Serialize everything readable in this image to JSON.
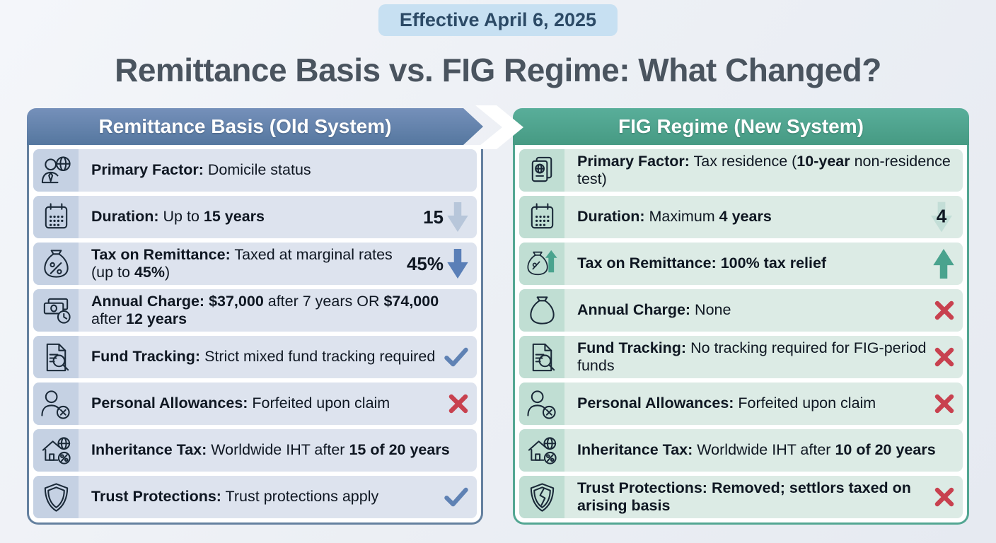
{
  "badge": {
    "label": "Effective April 6, 2025"
  },
  "title": "Remittance Basis vs. FIG Regime: What Changed?",
  "colors": {
    "old_system_header": "#5b7dac",
    "new_system_header": "#4ea18c",
    "check_blue": "#5f82b4",
    "cross_red": "#c8414f",
    "down_arrow_blue": "#5a7fb7",
    "down_arrow_light": "#b7c6da",
    "up_arrow_teal": "#4aa38e",
    "badge_bg": "#c7e0f2"
  },
  "left_panel": {
    "header": "Remittance Basis (Old System)",
    "rows": [
      {
        "icon": "person-globe",
        "segments": [
          {
            "t": "Primary Factor:",
            "b": true
          },
          {
            "t": " Domicile status"
          }
        ]
      },
      {
        "icon": "calendar",
        "marker_text": "15",
        "segments": [
          {
            "t": "Duration:",
            "b": true
          },
          {
            "t": " Up to "
          },
          {
            "t": "15 years",
            "b": true
          }
        ]
      },
      {
        "icon": "money-bag-percent",
        "marker_text": "45%",
        "segments": [
          {
            "t": "Tax on Remittance:",
            "b": true
          },
          {
            "t": " Taxed at marginal rates (up to "
          },
          {
            "t": "45%",
            "b": true
          },
          {
            "t": ")"
          }
        ]
      },
      {
        "icon": "banknotes-clock",
        "segments": [
          {
            "t": "Annual Charge:",
            "b": true
          },
          {
            "t": " "
          },
          {
            "t": "$37,000",
            "b": true
          },
          {
            "t": " after 7 years OR "
          },
          {
            "t": "$74,000",
            "b": true
          },
          {
            "t": " after "
          },
          {
            "t": "12 years",
            "b": true
          }
        ]
      },
      {
        "icon": "document-magnifier",
        "segments": [
          {
            "t": "Fund Tracking:",
            "b": true
          },
          {
            "t": " Strict mixed fund tracking required"
          }
        ]
      },
      {
        "icon": "person-crossed",
        "segments": [
          {
            "t": "Personal Allowances:",
            "b": true
          },
          {
            "t": " Forfeited upon claim"
          }
        ]
      },
      {
        "icon": "house-globe-percent",
        "segments": [
          {
            "t": "Inheritance Tax:",
            "b": true
          },
          {
            "t": " Worldwide IHT after "
          },
          {
            "t": "15 of 20 years",
            "b": true
          }
        ]
      },
      {
        "icon": "shield",
        "segments": [
          {
            "t": "Trust Protections:",
            "b": true
          },
          {
            "t": " Trust protections apply"
          }
        ]
      }
    ]
  },
  "right_panel": {
    "header": "FIG Regime (New System)",
    "rows": [
      {
        "icon": "passport",
        "segments": [
          {
            "t": "Primary Factor:",
            "b": true
          },
          {
            "t": " Tax residence ("
          },
          {
            "t": "10-year",
            "b": true
          },
          {
            "t": " non-residence test)"
          }
        ]
      },
      {
        "icon": "calendar",
        "marker_text": "4",
        "segments": [
          {
            "t": "Duration:",
            "b": true
          },
          {
            "t": " Maximum "
          },
          {
            "t": "4 years",
            "b": true
          }
        ]
      },
      {
        "icon": "money-bag-up",
        "segments": [
          {
            "t": "Tax on Remittance: 100% tax relief",
            "b": true
          }
        ]
      },
      {
        "icon": "money-bag",
        "segments": [
          {
            "t": "Annual Charge:",
            "b": true
          },
          {
            "t": " None"
          }
        ]
      },
      {
        "icon": "document-magnifier",
        "segments": [
          {
            "t": "Fund Tracking:",
            "b": true
          },
          {
            "t": " No tracking required for FIG-period funds"
          }
        ]
      },
      {
        "icon": "person-crossed",
        "segments": [
          {
            "t": "Personal Allowances:",
            "b": true
          },
          {
            "t": " Forfeited upon claim"
          }
        ]
      },
      {
        "icon": "house-globe-percent",
        "segments": [
          {
            "t": "Inheritance Tax:",
            "b": true
          },
          {
            "t": " Worldwide IHT after "
          },
          {
            "t": "10 of 20 years",
            "b": true
          }
        ]
      },
      {
        "icon": "shield-broken",
        "segments": [
          {
            "t": "Trust Protections: Removed; settlors taxed on arising basis",
            "b": true
          }
        ]
      }
    ]
  }
}
